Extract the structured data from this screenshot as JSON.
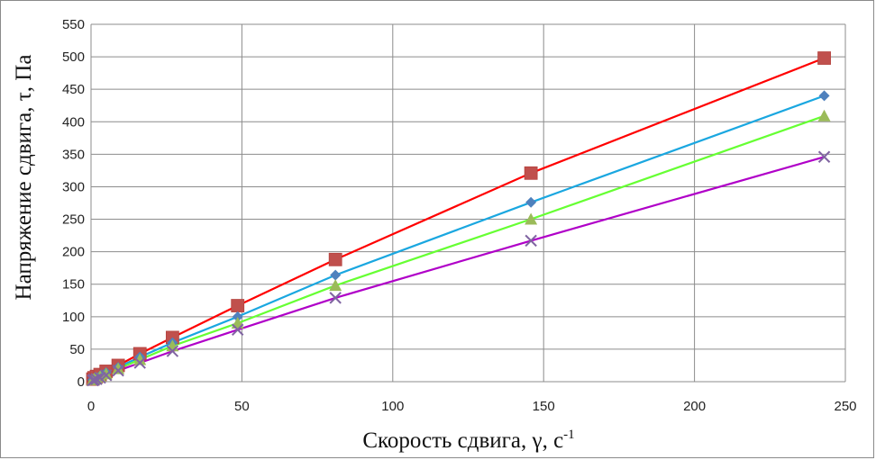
{
  "chart_data": {
    "type": "scatter",
    "xlabel": "Скорость сдвига, γ, с",
    "xlabel_sup": "-1",
    "ylabel": "Напряжение сдвига, τ, Па",
    "xlim": [
      0,
      250
    ],
    "ylim": [
      0,
      550
    ],
    "xticks": [
      0,
      50,
      100,
      150,
      200,
      250
    ],
    "yticks": [
      0,
      50,
      100,
      150,
      200,
      250,
      300,
      350,
      400,
      450,
      500,
      550
    ],
    "grid": true,
    "legend": "none",
    "series": [
      {
        "marker": "square",
        "color": "#c0504d",
        "line_color": "#ff0000",
        "x": [
          0.6,
          1,
          1.8,
          3,
          5,
          9,
          16.2,
          27,
          48.6,
          81,
          145.8,
          243
        ],
        "values": [
          4,
          6,
          8,
          11,
          16,
          25,
          43,
          68,
          117,
          188,
          321,
          498
        ]
      },
      {
        "marker": "diamond",
        "color": "#4f81bd",
        "line_color": "#1aa7e0",
        "x": [
          0.6,
          1,
          1.8,
          3,
          5,
          9,
          16.2,
          27,
          48.6,
          81,
          145.8,
          243
        ],
        "values": [
          3,
          4,
          6,
          9,
          14,
          22,
          38,
          60,
          100,
          164,
          276,
          440
        ]
      },
      {
        "marker": "triangle",
        "color": "#9bbb59",
        "line_color": "#66ff33",
        "x": [
          0.6,
          1,
          1.8,
          3,
          5,
          9,
          16.2,
          27,
          48.6,
          81,
          145.8,
          243
        ],
        "values": [
          3,
          4,
          5,
          8,
          12,
          20,
          34,
          55,
          90,
          148,
          250,
          409
        ]
      },
      {
        "marker": "x",
        "color": "#8064a2",
        "line_color": "#b000c8",
        "x": [
          0.6,
          1,
          1.8,
          3,
          5,
          9,
          16.2,
          27,
          48.6,
          81,
          145.8,
          243
        ],
        "values": [
          2,
          3,
          4,
          6,
          10,
          17,
          29,
          47,
          80,
          129,
          217,
          346
        ]
      }
    ]
  }
}
